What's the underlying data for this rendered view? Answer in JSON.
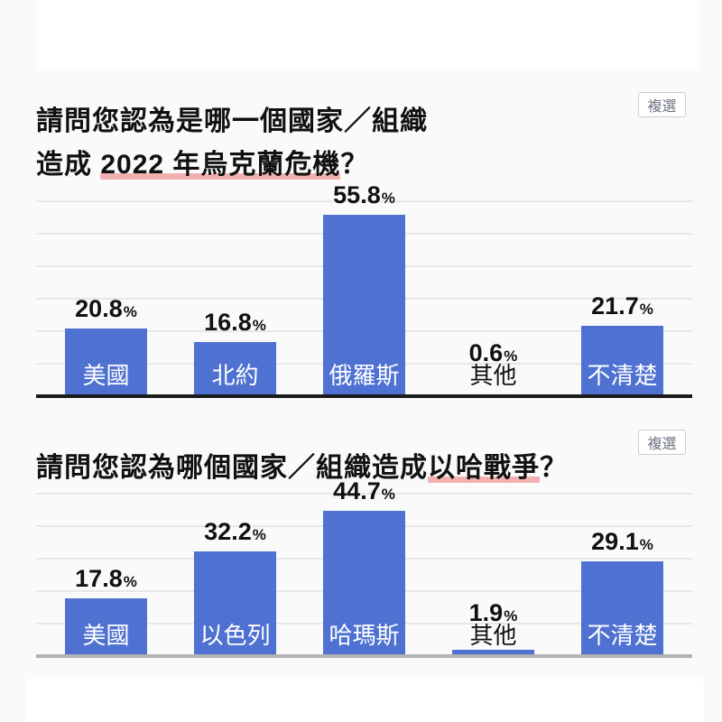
{
  "colors": {
    "background": "#fafafa",
    "card": "#ffffff",
    "title_text": "#111111",
    "bar_blue": "#4e71d2",
    "underline_pink": "#f2b1b1",
    "gridline": "#e7e7e7",
    "axis_dark": "#1c1c1c",
    "axis_light": "#b3b3b3",
    "badge_border": "#cccccc",
    "badge_text": "#6b7280",
    "bar_label_in": "#ffffff",
    "value_text": "#111111"
  },
  "sections": [
    {
      "badge": "複選",
      "title_segments": [
        {
          "text": "請問您認為是哪一個國家／組織",
          "underline": false,
          "break_after": true
        },
        {
          "text": "造成 ",
          "underline": false
        },
        {
          "text": "2022 年烏克蘭危機",
          "underline": true
        },
        {
          "text": "？",
          "underline": false
        }
      ]
    },
    {
      "badge": "複選",
      "title_segments": [
        {
          "text": "請問您認為哪個國家／組織造成",
          "underline": false
        },
        {
          "text": "以哈戰爭",
          "underline": true
        },
        {
          "text": "？",
          "underline": false
        }
      ]
    }
  ],
  "chart_data": [
    {
      "type": "bar",
      "title": "請問您認為是哪一個國家／組織造成 2022 年烏克蘭危機？",
      "badge": "複選",
      "categories": [
        "美國",
        "北約",
        "俄羅斯",
        "其他",
        "不清楚"
      ],
      "values": [
        20.8,
        16.8,
        55.8,
        0.6,
        21.7
      ],
      "value_labels": [
        "20.8",
        "16.8",
        "55.8",
        "0.6",
        "21.7"
      ],
      "unit": "%",
      "ylim": [
        0,
        60
      ],
      "grid_interval": 10,
      "grid": true,
      "legend": false,
      "bar_color": "#4e71d2",
      "axis_color": "#1c1c1c",
      "highlighted_phrase": "2022 年烏克蘭危機"
    },
    {
      "type": "bar",
      "title": "請問您認為哪個國家／組織造成以哈戰爭？",
      "badge": "複選",
      "categories": [
        "美國",
        "以色列",
        "哈瑪斯",
        "其他",
        "不清楚"
      ],
      "values": [
        17.8,
        32.2,
        44.7,
        1.9,
        29.1
      ],
      "value_labels": [
        "17.8",
        "32.2",
        "44.7",
        "1.9",
        "29.1"
      ],
      "unit": "%",
      "ylim": [
        0,
        50
      ],
      "grid_interval": 10,
      "grid": true,
      "legend": false,
      "bar_color": "#4e71d2",
      "axis_color": "#b3b3b3",
      "highlighted_phrase": "以哈戰爭"
    }
  ]
}
